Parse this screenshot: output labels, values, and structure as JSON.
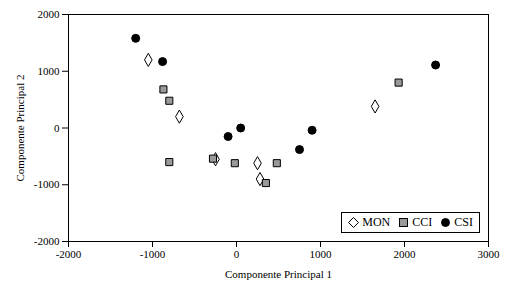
{
  "chart_data": {
    "type": "scatter",
    "x_label": "Componente Principal 1",
    "y_label": "Componente Principal 2",
    "xlim": [
      -2000,
      3000
    ],
    "xticks": [
      -2000,
      -1000,
      0,
      1000,
      2000,
      3000
    ],
    "ylim": [
      -2000,
      2000
    ],
    "yticks": [
      -2000,
      -1000,
      0,
      1000,
      2000
    ],
    "grid": false,
    "legend": "lower right",
    "series": [
      {
        "name": "MON",
        "color": "#ffffff",
        "marker": "diamond",
        "x": [
          -1050,
          -680,
          -250,
          250,
          280,
          1650
        ],
        "values": [
          1200,
          200,
          -550,
          -620,
          -900,
          380
        ]
      },
      {
        "name": "CCI",
        "color": "#999999",
        "marker": "square",
        "x": [
          -870,
          -800,
          -800,
          -280,
          -20,
          350,
          480,
          1930
        ],
        "values": [
          680,
          480,
          -600,
          -540,
          -620,
          -970,
          -620,
          800
        ]
      },
      {
        "name": "CSI",
        "color": "#000000",
        "marker": "circle",
        "x": [
          -1200,
          -880,
          -100,
          50,
          750,
          900,
          2370
        ],
        "values": [
          1580,
          1170,
          -150,
          0,
          -380,
          -40,
          1110
        ]
      }
    ]
  }
}
